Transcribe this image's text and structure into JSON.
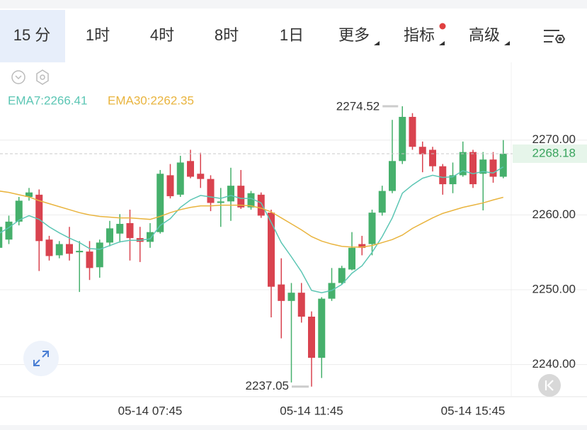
{
  "tabs": [
    "15 分",
    "1时",
    "4时",
    "8时",
    "1日",
    "更多",
    "指标",
    "高级"
  ],
  "chart_data": {
    "type": "candlestick",
    "categories": [
      null,
      null,
      null,
      null,
      null,
      null,
      null,
      null,
      null,
      null,
      null,
      null,
      null,
      null,
      null,
      "05-14 07:45",
      null,
      null,
      null,
      null,
      null,
      null,
      null,
      null,
      null,
      null,
      null,
      null,
      null,
      null,
      null,
      "05-14 11:45",
      null,
      null,
      null,
      null,
      null,
      null,
      null,
      null,
      null,
      null,
      null,
      null,
      null,
      null,
      null,
      "05-14 15:45",
      null,
      null,
      null
    ],
    "open": [
      2255.6,
      2256.7,
      2259.1,
      2262.4,
      2262.7,
      2256.7,
      2254.6,
      2256.1,
      2255.0,
      2255.1,
      2253.0,
      2256.3,
      2257.5,
      2258.9,
      2256.9,
      2256.4,
      2257.7,
      2265.3,
      2262.7,
      2267.2,
      2265.5,
      2264.8,
      2261.6,
      2261.8,
      2263.9,
      2261.0,
      2262.7,
      2260.3,
      2250.7,
      2248.5,
      2249.6,
      2246.4,
      2240.9,
      2248.8,
      2250.9,
      2252.7,
      2256.1,
      2256.1,
      2260.3,
      2263.2,
      2267.2,
      2273.1,
      2269.1,
      2268.7,
      2266.5,
      2264.1,
      2265.3,
      2268.4,
      2265.5,
      2267.4,
      2265.1
    ],
    "high": [
      2258.9,
      2259.9,
      2262.4,
      2263.6,
      2263.4,
      2257.2,
      2256.5,
      2258.4,
      2256.5,
      2256.5,
      2256.7,
      2259.2,
      2260.1,
      2260.7,
      2258.4,
      2258.9,
      2266.0,
      2266.8,
      2267.9,
      2268.7,
      2268.3,
      2265.3,
      2263.6,
      2266.3,
      2266.0,
      2263.2,
      2263.0,
      2260.7,
      2254.2,
      2250.9,
      2250.9,
      2247.1,
      2249.0,
      2252.9,
      2253.2,
      2257.7,
      2257.2,
      2260.7,
      2263.9,
      2272.7,
      2274.52,
      2273.6,
      2269.8,
      2269.1,
      2266.8,
      2267.0,
      2269.8,
      2268.7,
      2268.4,
      2268.4,
      2270.0
    ],
    "low": [
      2255.1,
      2256.1,
      2258.6,
      2261.9,
      2252.5,
      2253.9,
      2254.2,
      2253.9,
      2249.7,
      2251.3,
      2251.6,
      2255.8,
      2256.3,
      2253.9,
      2253.7,
      2255.6,
      2257.5,
      2262.2,
      2262.4,
      2264.9,
      2263.6,
      2260.5,
      2258.4,
      2259.2,
      2260.8,
      2260.7,
      2259.6,
      2246.3,
      2243.5,
      2237.6,
      2245.6,
      2237.05,
      2238.2,
      2248.5,
      2250.7,
      2252.6,
      2254.6,
      2254.6,
      2259.9,
      2262.9,
      2266.8,
      2268.7,
      2265.7,
      2265.8,
      2262.7,
      2262.9,
      2265.1,
      2263.6,
      2260.6,
      2264.3,
      2264.9
    ],
    "close": [
      2258.4,
      2259.1,
      2261.9,
      2263.0,
      2256.5,
      2254.5,
      2256.1,
      2254.8,
      2255.2,
      2252.9,
      2256.3,
      2258.2,
      2258.8,
      2256.9,
      2256.4,
      2257.7,
      2265.5,
      2262.5,
      2267.0,
      2265.1,
      2264.8,
      2261.6,
      2261.8,
      2263.9,
      2261.0,
      2262.9,
      2259.9,
      2250.4,
      2248.5,
      2249.6,
      2246.4,
      2240.9,
      2248.8,
      2250.9,
      2252.9,
      2255.6,
      2255.6,
      2260.3,
      2263.2,
      2267.2,
      2273.1,
      2269.1,
      2268.1,
      2266.5,
      2264.1,
      2265.3,
      2268.4,
      2264.1,
      2267.4,
      2265.1,
      2268.18
    ],
    "up_color": "#46b06c",
    "down_color": "#d9434f",
    "series": [
      {
        "name": "EMA7:2266.41",
        "color": "#5cc6b4",
        "values": [
          2257.5,
          2258.3,
          2259.3,
          2259.9,
          2259.4,
          2258.4,
          2257.6,
          2256.9,
          2256.3,
          2255.5,
          2255.4,
          2255.9,
          2256.4,
          2256.6,
          2256.6,
          2256.8,
          2258.6,
          2259.5,
          2261.0,
          2262.0,
          2262.6,
          2262.4,
          2262.2,
          2262.6,
          2262.2,
          2262.2,
          2261.6,
          2259.0,
          2256.3,
          2254.4,
          2252.4,
          2249.9,
          2249.6,
          2249.9,
          2250.7,
          2252.2,
          2253.2,
          2255.0,
          2257.1,
          2259.6,
          2262.9,
          2264.0,
          2264.9,
          2265.3,
          2265.0,
          2265.1,
          2265.9,
          2265.5,
          2265.8,
          2265.6,
          2266.41
        ]
      },
      {
        "name": "EMA30:2262.35",
        "color": "#e9b43e",
        "values": [
          2263.2,
          2263.0,
          2262.7,
          2262.4,
          2261.9,
          2261.5,
          2261.1,
          2260.7,
          2260.3,
          2260.0,
          2259.8,
          2259.7,
          2259.6,
          2259.6,
          2259.5,
          2259.4,
          2259.8,
          2260.3,
          2260.7,
          2261.0,
          2261.2,
          2261.2,
          2261.3,
          2261.3,
          2261.3,
          2261.2,
          2260.9,
          2260.4,
          2259.6,
          2258.8,
          2258.0,
          2257.1,
          2256.5,
          2256.1,
          2255.8,
          2255.7,
          2255.7,
          2255.9,
          2256.3,
          2256.7,
          2257.3,
          2258.2,
          2258.9,
          2259.6,
          2260.2,
          2260.6,
          2261.0,
          2261.3,
          2261.6,
          2262.0,
          2262.35
        ]
      }
    ],
    "ylim": [
      2235.7,
      2280.2
    ],
    "yticks": [
      {
        "value": 2240,
        "label": "2240.00"
      },
      {
        "value": 2250,
        "label": "2250.00"
      },
      {
        "value": 2260,
        "label": "2260.00"
      },
      {
        "value": 2270,
        "label": "2270.00"
      }
    ],
    "grid": true
  }
}
